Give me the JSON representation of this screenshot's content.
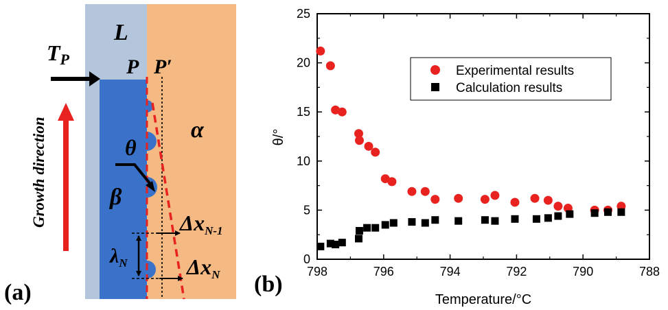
{
  "panel_a": {
    "panel_label": "(a)",
    "phase_liquid": "L",
    "phase_alpha": "α",
    "phase_beta": "β",
    "point_p": "P",
    "point_p_prime": "P′",
    "temperature_label_main": "T",
    "temperature_label_sub": "P",
    "growth_direction": "Growth direction",
    "angle_label": "θ",
    "spacing_label_main": "λ",
    "spacing_label_sub": "N",
    "dx_n1_main": "Δx",
    "dx_n1_sub": "N-1",
    "dx_n_main": "Δx",
    "dx_n_sub": "N",
    "colors": {
      "liquid": "#b3c6dc",
      "alpha": "#f5b984",
      "beta": "#3b72c9",
      "red": "#e8231f",
      "black": "#000000"
    }
  },
  "panel_b": {
    "panel_label": "(b)"
  },
  "chart_data": {
    "type": "scatter",
    "xlabel": "Temperature/°C",
    "ylabel": "θ/°",
    "xlim": [
      798,
      788
    ],
    "ylim": [
      0,
      25
    ],
    "x_ticks": [
      "798",
      "796",
      "794",
      "792",
      "790",
      "788"
    ],
    "y_ticks": [
      "0",
      "5",
      "10",
      "15",
      "20",
      "25"
    ],
    "legend_position": "top-right",
    "series": [
      {
        "name": "Experimental results",
        "marker": "circle",
        "color": "#e8231f",
        "points": [
          [
            797.9,
            21.2
          ],
          [
            797.6,
            19.7
          ],
          [
            797.45,
            15.2
          ],
          [
            797.25,
            15.0
          ],
          [
            796.75,
            12.8
          ],
          [
            796.73,
            12.1
          ],
          [
            796.45,
            11.5
          ],
          [
            796.25,
            10.9
          ],
          [
            795.95,
            8.2
          ],
          [
            795.75,
            7.9
          ],
          [
            795.15,
            6.9
          ],
          [
            794.75,
            6.9
          ],
          [
            794.45,
            6.1
          ],
          [
            793.75,
            6.2
          ],
          [
            792.95,
            6.1
          ],
          [
            792.65,
            6.5
          ],
          [
            792.05,
            5.8
          ],
          [
            791.45,
            6.2
          ],
          [
            791.05,
            6.0
          ],
          [
            790.75,
            5.4
          ],
          [
            790.45,
            5.2
          ],
          [
            789.65,
            5.0
          ],
          [
            789.25,
            5.0
          ],
          [
            788.85,
            5.4
          ]
        ]
      },
      {
        "name": "Calculation results",
        "marker": "square",
        "color": "#000000",
        "points": [
          [
            797.9,
            1.3
          ],
          [
            797.6,
            1.6
          ],
          [
            797.45,
            1.5
          ],
          [
            797.25,
            1.7
          ],
          [
            796.75,
            2.1
          ],
          [
            796.73,
            2.9
          ],
          [
            796.5,
            3.2
          ],
          [
            796.25,
            3.2
          ],
          [
            795.95,
            3.5
          ],
          [
            795.7,
            3.7
          ],
          [
            795.15,
            3.8
          ],
          [
            794.75,
            3.7
          ],
          [
            794.45,
            4.0
          ],
          [
            793.75,
            3.9
          ],
          [
            792.95,
            4.0
          ],
          [
            792.65,
            3.9
          ],
          [
            792.05,
            4.1
          ],
          [
            791.4,
            4.1
          ],
          [
            791.05,
            4.2
          ],
          [
            790.75,
            4.4
          ],
          [
            790.4,
            4.6
          ],
          [
            789.65,
            4.7
          ],
          [
            789.25,
            4.8
          ],
          [
            788.85,
            4.8
          ]
        ]
      }
    ]
  }
}
